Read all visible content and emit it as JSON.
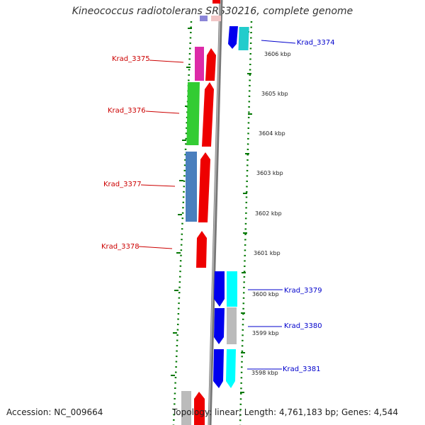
{
  "title": "Kineococcus radiotolerans SRS30216, complete genome",
  "accession": "Accession: NC_009664",
  "footer_stats": "Topology: linear; Length: 4,761,183 bp; Genes: 4,544",
  "kbp_ticks": [
    "3606 kbp",
    "3605 kbp",
    "3604 kbp",
    "3603 kbp",
    "3602 kbp",
    "3601 kbp",
    "3600 kbp",
    "3599 kbp",
    "3598 kbp"
  ],
  "genes_left": [
    {
      "name": "Krad_3375",
      "color": "#cc0000"
    },
    {
      "name": "Krad_3376",
      "color": "#cc0000"
    },
    {
      "name": "Krad_3377",
      "color": "#cc0000"
    },
    {
      "name": "Krad_3378",
      "color": "#cc0000"
    }
  ],
  "genes_right": [
    {
      "name": "Krad_3374",
      "color": "#0000cc"
    },
    {
      "name": "Krad_3379",
      "color": "#0000cc"
    },
    {
      "name": "Krad_3380",
      "color": "#0000cc"
    },
    {
      "name": "Krad_3381",
      "color": "#0000cc"
    }
  ],
  "colors": {
    "forward_gene": "#ee0000",
    "reverse_gene": "#0000ee",
    "backbone": "#888888",
    "dotted_border": "#007700"
  }
}
